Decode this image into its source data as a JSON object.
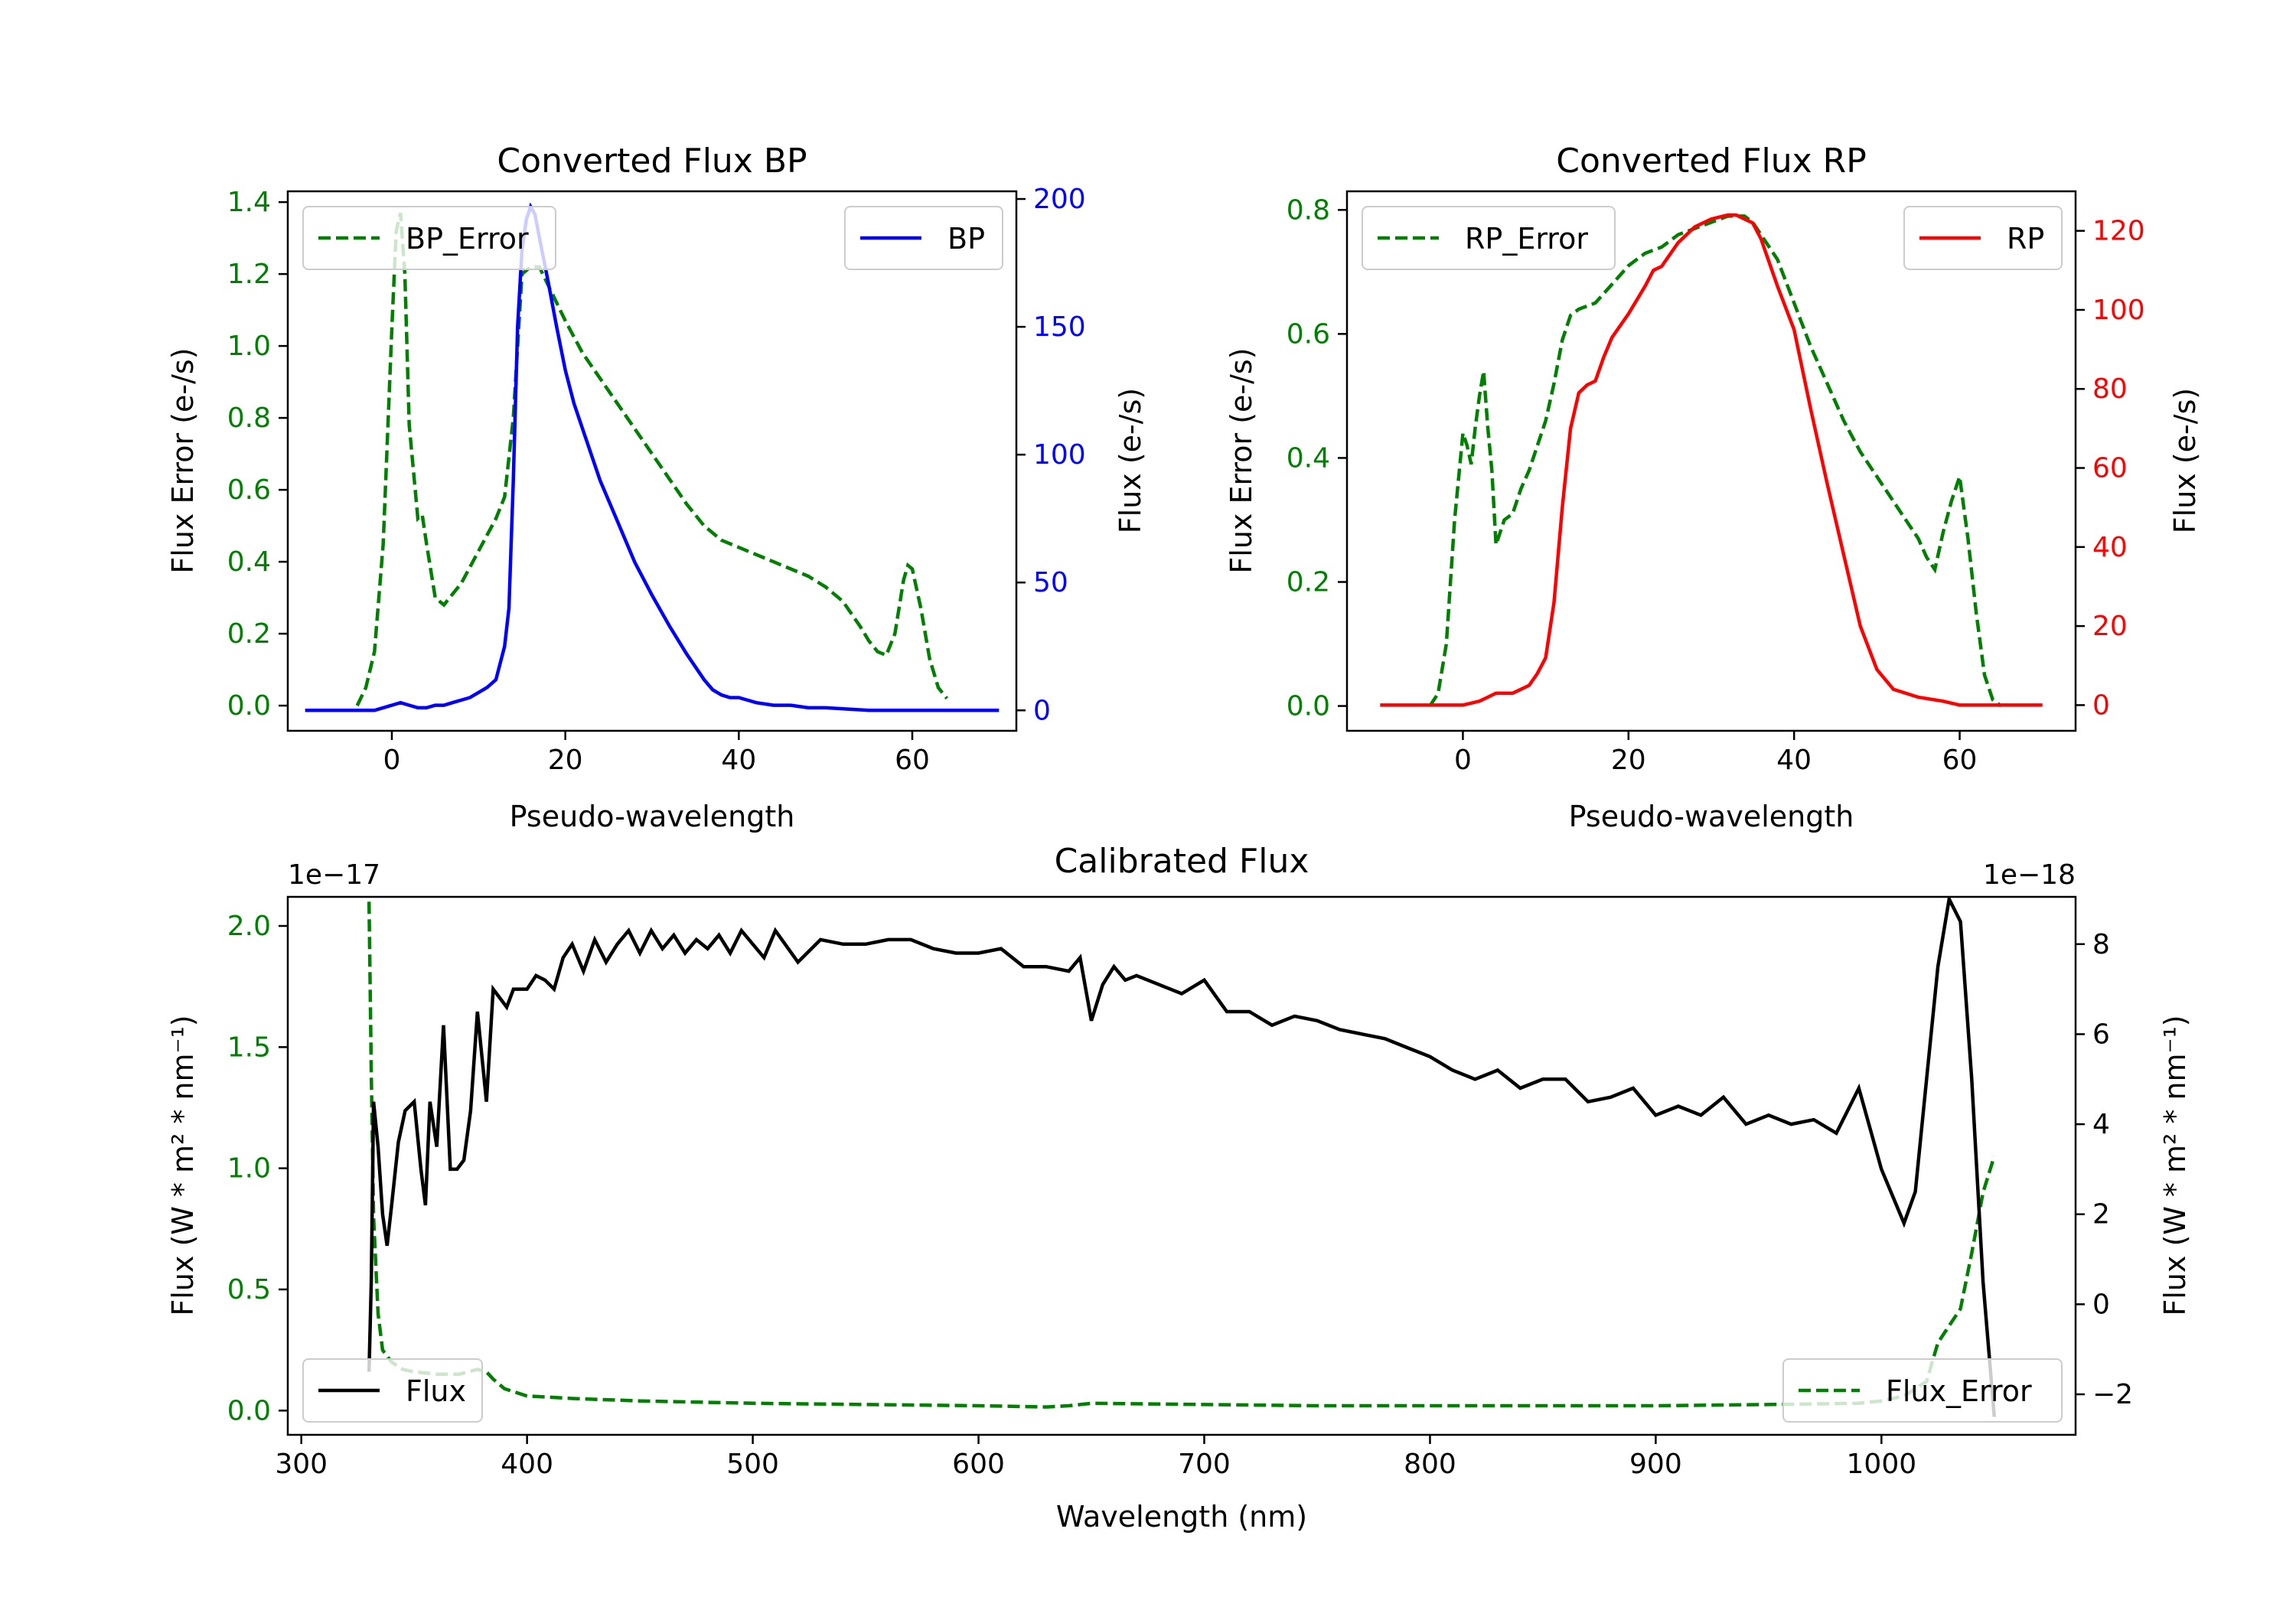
{
  "chart_data": [
    {
      "type": "line",
      "title": "Converted Flux BP",
      "xlabel": "Pseudo-wavelength",
      "xlim": [
        -12,
        72
      ],
      "xticks": [
        0,
        20,
        40,
        60
      ],
      "y_left": {
        "label": "Flux Error (e-/s)",
        "color": "#008000",
        "lim": [
          -0.07,
          1.43
        ],
        "ticks": [
          "0.0",
          "0.2",
          "0.4",
          "0.6",
          "0.8",
          "1.0",
          "1.2",
          "1.4"
        ]
      },
      "y_right": {
        "label": "Flux (e-/s)",
        "color": "#0000ff",
        "lim": [
          -8,
          203
        ],
        "ticks": [
          "0",
          "50",
          "100",
          "150",
          "200"
        ]
      },
      "series": [
        {
          "name": "BP_Error",
          "axis": "left",
          "style": "dashed",
          "color": "#008000",
          "x": [
            -4,
            -3,
            -2,
            -1,
            0,
            0.5,
            1,
            1.5,
            2,
            3,
            3.5,
            4,
            5,
            6,
            7,
            8,
            10,
            12,
            13,
            14,
            15,
            16,
            17,
            18,
            20,
            22,
            24,
            26,
            28,
            30,
            32,
            34,
            36,
            38,
            40,
            42,
            44,
            46,
            48,
            50,
            52,
            54,
            55,
            56,
            57,
            58,
            59,
            59.5,
            60,
            61,
            62,
            63,
            64
          ],
          "values": [
            0.0,
            0.05,
            0.15,
            0.45,
            1.05,
            1.32,
            1.37,
            1.2,
            0.78,
            0.52,
            0.53,
            0.45,
            0.3,
            0.28,
            0.31,
            0.34,
            0.43,
            0.52,
            0.58,
            0.8,
            1.2,
            1.22,
            1.22,
            1.17,
            1.07,
            0.98,
            0.91,
            0.84,
            0.77,
            0.7,
            0.63,
            0.56,
            0.5,
            0.46,
            0.44,
            0.42,
            0.4,
            0.38,
            0.36,
            0.33,
            0.29,
            0.22,
            0.18,
            0.15,
            0.14,
            0.2,
            0.35,
            0.39,
            0.38,
            0.27,
            0.13,
            0.05,
            0.02
          ]
        },
        {
          "name": "BP",
          "axis": "right",
          "style": "solid",
          "color": "#0000ff",
          "x": [
            -10,
            -5,
            -2,
            0,
            1,
            2,
            3,
            4,
            5,
            6,
            7,
            8,
            9,
            10,
            11,
            12,
            13,
            13.5,
            14,
            14.5,
            15,
            15.5,
            16,
            16.5,
            17,
            18,
            19,
            20,
            21,
            22,
            24,
            26,
            28,
            30,
            32,
            34,
            36,
            37,
            38,
            39,
            40,
            41,
            42,
            44,
            46,
            48,
            50,
            55,
            60,
            65,
            70
          ],
          "values": [
            0,
            0,
            0,
            2,
            3,
            2,
            1,
            1,
            2,
            2,
            3,
            4,
            5,
            7,
            9,
            12,
            25,
            40,
            90,
            150,
            180,
            192,
            197,
            194,
            185,
            168,
            150,
            133,
            120,
            110,
            90,
            74,
            58,
            45,
            33,
            22,
            12,
            8,
            6,
            5,
            5,
            4,
            3,
            2,
            2,
            1,
            1,
            0,
            0,
            0,
            0
          ]
        }
      ],
      "legend": [
        {
          "label": "BP_Error",
          "loc": "upper-left"
        },
        {
          "label": "BP",
          "loc": "upper-right"
        }
      ]
    },
    {
      "type": "line",
      "title": "Converted Flux RP",
      "xlabel": "Pseudo-wavelength",
      "xlim": [
        -14,
        74
      ],
      "xticks": [
        0,
        20,
        40,
        60
      ],
      "y_left": {
        "label": "Flux Error (e-/s)",
        "color": "#008000",
        "lim": [
          -0.04,
          0.83
        ],
        "ticks": [
          "0.0",
          "0.2",
          "0.4",
          "0.6",
          "0.8"
        ]
      },
      "y_right": {
        "label": "Flux (e-/s)",
        "color": "#ff0000",
        "lim": [
          -6.5,
          130
        ],
        "ticks": [
          "0",
          "20",
          "40",
          "60",
          "80",
          "100",
          "120"
        ]
      },
      "series": [
        {
          "name": "RP_Error",
          "axis": "left",
          "style": "dashed",
          "color": "#008000",
          "x": [
            -4,
            -3,
            -2,
            -1,
            0,
            0.5,
            1,
            1.5,
            2,
            2.5,
            3,
            3.5,
            4,
            5,
            6,
            7,
            8,
            9,
            10,
            11,
            12,
            13,
            14,
            16,
            18,
            20,
            22,
            24,
            26,
            28,
            30,
            32,
            33,
            34,
            35,
            36,
            38,
            40,
            42,
            44,
            46,
            48,
            50,
            52,
            54,
            55,
            56,
            57,
            58,
            59,
            60,
            61,
            62,
            63,
            64,
            65
          ],
          "values": [
            0.0,
            0.02,
            0.1,
            0.3,
            0.44,
            0.42,
            0.39,
            0.45,
            0.5,
            0.54,
            0.45,
            0.38,
            0.26,
            0.3,
            0.31,
            0.35,
            0.38,
            0.42,
            0.46,
            0.52,
            0.59,
            0.63,
            0.64,
            0.65,
            0.68,
            0.71,
            0.73,
            0.74,
            0.76,
            0.77,
            0.78,
            0.79,
            0.79,
            0.79,
            0.78,
            0.76,
            0.72,
            0.65,
            0.58,
            0.52,
            0.46,
            0.41,
            0.37,
            0.33,
            0.29,
            0.27,
            0.24,
            0.22,
            0.28,
            0.33,
            0.37,
            0.27,
            0.15,
            0.05,
            0.01,
            0.0
          ]
        },
        {
          "name": "RP",
          "axis": "right",
          "style": "solid",
          "color": "#ff0000",
          "x": [
            -10,
            -5,
            0,
            2,
            3,
            4,
            5,
            6,
            7,
            8,
            9,
            10,
            11,
            12,
            13,
            14,
            15,
            16,
            17,
            18,
            19,
            20,
            22,
            23,
            24,
            26,
            28,
            30,
            32,
            33,
            34,
            35,
            36,
            37,
            38,
            40,
            42,
            44,
            46,
            48,
            50,
            52,
            55,
            58,
            60,
            65,
            70
          ],
          "values": [
            0,
            0,
            0,
            1,
            2,
            3,
            3,
            3,
            4,
            5,
            8,
            12,
            26,
            50,
            70,
            79,
            81,
            82,
            88,
            93,
            96,
            99,
            106,
            110,
            111,
            117,
            121,
            123,
            124,
            124,
            123,
            122,
            118,
            112,
            106,
            95,
            75,
            56,
            38,
            20,
            9,
            4,
            2,
            1,
            0,
            0,
            0
          ]
        }
      ],
      "legend": [
        {
          "label": "RP_Error",
          "loc": "upper-left"
        },
        {
          "label": "RP",
          "loc": "upper-right"
        }
      ]
    },
    {
      "type": "line",
      "title": "Calibrated Flux",
      "xlabel": "Wavelength (nm)",
      "xlim": [
        294,
        1086
      ],
      "xticks": [
        300,
        400,
        500,
        600,
        700,
        800,
        900,
        1000
      ],
      "y_left": {
        "label": "Flux (W * m² * nm⁻¹)",
        "color": "#008000",
        "lim": [
          -0.1,
          2.12
        ],
        "ticks": [
          "0.0",
          "0.5",
          "1.0",
          "1.5",
          "2.0"
        ],
        "offset_text": "1e−17"
      },
      "y_right": {
        "label": "Flux (W * m² * nm⁻¹)",
        "color": "#000000",
        "lim": [
          -2.9,
          9.05
        ],
        "ticks": [
          "−2",
          "0",
          "2",
          "4",
          "6",
          "8"
        ],
        "offset_text": "1e−18"
      },
      "series": [
        {
          "name": "Flux_Error",
          "axis": "left",
          "style": "dashed",
          "color": "#008000",
          "x": [
            330,
            331,
            332,
            334,
            336,
            340,
            345,
            350,
            360,
            370,
            378,
            382,
            385,
            390,
            400,
            420,
            450,
            500,
            550,
            600,
            630,
            640,
            650,
            700,
            750,
            800,
            850,
            900,
            950,
            990,
            1000,
            1010,
            1020,
            1025,
            1030,
            1035,
            1040,
            1045,
            1050
          ],
          "values": [
            2.1,
            1.4,
            0.8,
            0.4,
            0.25,
            0.2,
            0.17,
            0.16,
            0.15,
            0.15,
            0.17,
            0.16,
            0.13,
            0.09,
            0.06,
            0.05,
            0.04,
            0.03,
            0.025,
            0.02,
            0.015,
            0.02,
            0.03,
            0.025,
            0.02,
            0.02,
            0.02,
            0.02,
            0.025,
            0.03,
            0.04,
            0.06,
            0.12,
            0.28,
            0.35,
            0.42,
            0.65,
            0.9,
            1.05
          ]
        },
        {
          "name": "Flux",
          "axis": "right",
          "style": "solid",
          "color": "#000000",
          "x": [
            330,
            331,
            332,
            334,
            336,
            338,
            340,
            343,
            346,
            350,
            353,
            355,
            357,
            360,
            363,
            366,
            369,
            372,
            375,
            378,
            382,
            385,
            388,
            391,
            394,
            397,
            400,
            404,
            408,
            412,
            416,
            420,
            425,
            430,
            435,
            440,
            445,
            450,
            455,
            460,
            465,
            470,
            475,
            480,
            485,
            490,
            495,
            500,
            505,
            510,
            520,
            530,
            540,
            550,
            560,
            570,
            580,
            590,
            600,
            610,
            620,
            630,
            640,
            645,
            650,
            655,
            660,
            665,
            670,
            680,
            690,
            700,
            710,
            720,
            730,
            740,
            750,
            760,
            770,
            780,
            790,
            800,
            810,
            820,
            830,
            840,
            850,
            860,
            870,
            880,
            890,
            900,
            910,
            920,
            930,
            940,
            950,
            960,
            970,
            980,
            990,
            1000,
            1010,
            1015,
            1020,
            1025,
            1030,
            1035,
            1040,
            1045,
            1050
          ],
          "values": [
            -1.5,
            0.5,
            4.5,
            3.5,
            2.0,
            1.3,
            2.2,
            3.6,
            4.3,
            4.5,
            3.0,
            2.2,
            4.5,
            3.5,
            6.2,
            3.0,
            3.0,
            3.2,
            4.3,
            6.5,
            4.5,
            7.0,
            6.8,
            6.6,
            7.0,
            7.0,
            7.0,
            7.3,
            7.2,
            7.0,
            7.7,
            8.0,
            7.4,
            8.1,
            7.6,
            8.0,
            8.3,
            7.8,
            8.3,
            7.9,
            8.2,
            7.8,
            8.1,
            7.9,
            8.2,
            7.8,
            8.3,
            8.0,
            7.7,
            8.3,
            7.6,
            8.1,
            8.0,
            8.0,
            8.1,
            8.1,
            7.9,
            7.8,
            7.8,
            7.9,
            7.5,
            7.5,
            7.4,
            7.7,
            6.3,
            7.1,
            7.5,
            7.2,
            7.3,
            7.1,
            6.9,
            7.2,
            6.5,
            6.5,
            6.2,
            6.4,
            6.3,
            6.1,
            6.0,
            5.9,
            5.7,
            5.5,
            5.2,
            5.0,
            5.2,
            4.8,
            5.0,
            5.0,
            4.5,
            4.6,
            4.8,
            4.2,
            4.4,
            4.2,
            4.6,
            4.0,
            4.2,
            4.0,
            4.1,
            3.8,
            4.8,
            3.0,
            1.8,
            2.5,
            5.0,
            7.5,
            9.0,
            8.5,
            5.0,
            0.5,
            -2.5
          ]
        }
      ],
      "legend": [
        {
          "label": "Flux",
          "loc": "lower-left"
        },
        {
          "label": "Flux_Error",
          "loc": "lower-right"
        }
      ]
    }
  ]
}
